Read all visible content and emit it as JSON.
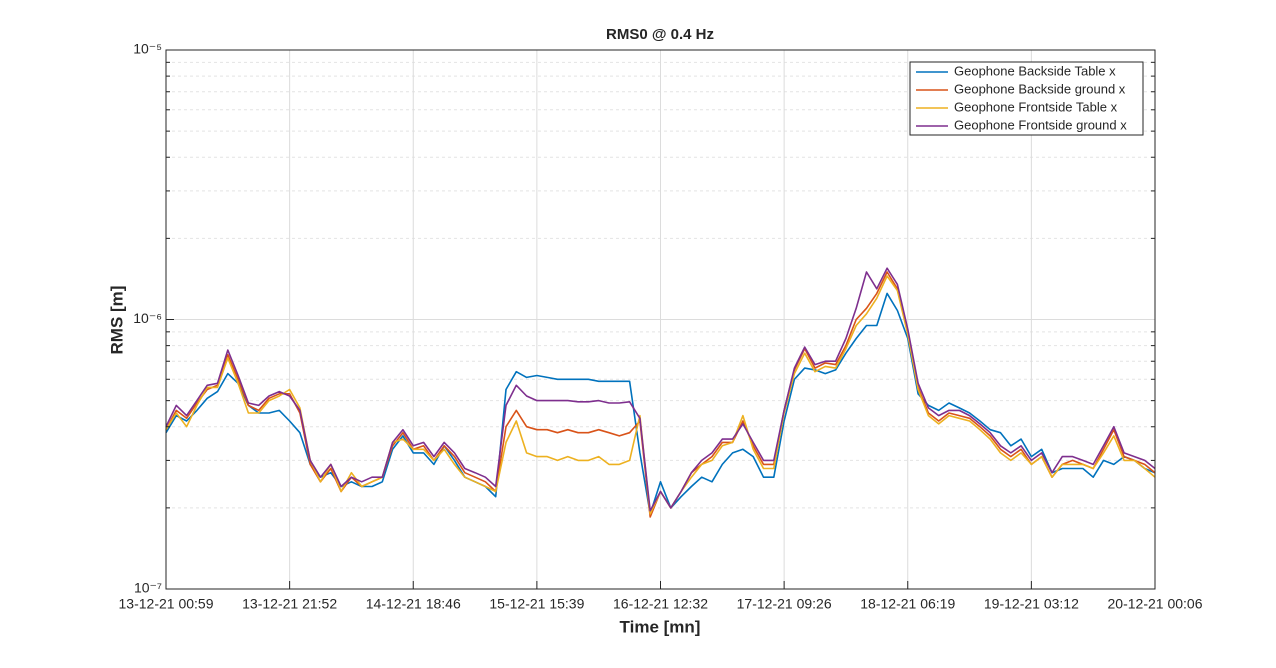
{
  "chart_data": {
    "type": "line",
    "title": "RMS0 @ 0.4 Hz",
    "x_label": "Time [mn]",
    "y_label": "RMS [m]",
    "y_scale": "log",
    "grid": true,
    "legend_position": "top-right",
    "categories": [
      "13-12-21 00:59",
      null,
      null,
      null,
      null,
      null,
      null,
      null,
      null,
      null,
      null,
      null,
      "13-12-21 21:52",
      null,
      null,
      null,
      null,
      null,
      null,
      null,
      null,
      null,
      null,
      null,
      "14-12-21 18:46",
      null,
      null,
      null,
      null,
      null,
      null,
      null,
      null,
      null,
      null,
      null,
      "15-12-21 15:39",
      null,
      null,
      null,
      null,
      null,
      null,
      null,
      null,
      null,
      null,
      null,
      "16-12-21 12:32",
      null,
      null,
      null,
      null,
      null,
      null,
      null,
      null,
      null,
      null,
      null,
      "17-12-21 09:26",
      null,
      null,
      null,
      null,
      null,
      null,
      null,
      null,
      null,
      null,
      null,
      "18-12-21 06:19",
      null,
      null,
      null,
      null,
      null,
      null,
      null,
      null,
      null,
      null,
      null,
      "19-12-21 03:12",
      null,
      null,
      null,
      null,
      null,
      null,
      null,
      null,
      null,
      null,
      null,
      "20-12-21 00:06"
    ],
    "ylim": [
      1e-07,
      1e-05
    ],
    "yticks": [
      {
        "value": 1e-07,
        "label": "10⁻⁷"
      },
      {
        "value": 1e-06,
        "label": "10⁻⁶"
      },
      {
        "value": 1e-05,
        "label": "10⁻⁵"
      }
    ],
    "series": [
      {
        "name": "Geophone Backside Table x",
        "color": "#0072BD",
        "values": [
          3.8e-07,
          4.4e-07,
          4.2e-07,
          4.6e-07,
          5.1e-07,
          5.4e-07,
          6.3e-07,
          5.8e-07,
          4.8e-07,
          4.5e-07,
          4.5e-07,
          4.6e-07,
          4.2e-07,
          3.8e-07,
          2.9e-07,
          2.6e-07,
          2.7e-07,
          2.4e-07,
          2.5e-07,
          2.4e-07,
          2.4e-07,
          2.5e-07,
          3.3e-07,
          3.7e-07,
          3.2e-07,
          3.2e-07,
          2.9e-07,
          3.4e-07,
          3e-07,
          2.6e-07,
          2.5e-07,
          2.4e-07,
          2.2e-07,
          5.5e-07,
          6.4e-07,
          6.1e-07,
          6.2e-07,
          6.1e-07,
          6e-07,
          6e-07,
          6e-07,
          6e-07,
          5.9e-07,
          5.9e-07,
          5.9e-07,
          5.9e-07,
          3.2e-07,
          1.9e-07,
          2.5e-07,
          2e-07,
          2.2e-07,
          2.4e-07,
          2.6e-07,
          2.5e-07,
          2.9e-07,
          3.2e-07,
          3.3e-07,
          3.1e-07,
          2.6e-07,
          2.6e-07,
          4.2e-07,
          6e-07,
          6.6e-07,
          6.5e-07,
          6.3e-07,
          6.5e-07,
          7.5e-07,
          8.5e-07,
          9.5e-07,
          9.5e-07,
          1.25e-06,
          1.08e-06,
          8.5e-07,
          5.3e-07,
          4.8e-07,
          4.6e-07,
          4.9e-07,
          4.7e-07,
          4.5e-07,
          4.2e-07,
          3.9e-07,
          3.8e-07,
          3.4e-07,
          3.6e-07,
          3.1e-07,
          3.3e-07,
          2.7e-07,
          2.8e-07,
          2.8e-07,
          2.8e-07,
          2.6e-07,
          3e-07,
          2.9e-07,
          3.1e-07,
          3e-07,
          2.8e-07,
          2.7e-07
        ]
      },
      {
        "name": "Geophone Backside ground x",
        "color": "#D95319",
        "values": [
          3.9e-07,
          4.6e-07,
          4.3e-07,
          4.9e-07,
          5.5e-07,
          5.7e-07,
          7.4e-07,
          6e-07,
          4.8e-07,
          4.6e-07,
          5.1e-07,
          5.3e-07,
          5.3e-07,
          4.5e-07,
          2.9e-07,
          2.5e-07,
          2.8e-07,
          2.3e-07,
          2.6e-07,
          2.4e-07,
          2.5e-07,
          2.6e-07,
          3.4e-07,
          3.8e-07,
          3.3e-07,
          3.4e-07,
          3e-07,
          3.4e-07,
          3.1e-07,
          2.7e-07,
          2.6e-07,
          2.5e-07,
          2.3e-07,
          4e-07,
          4.6e-07,
          4e-07,
          3.9e-07,
          3.9e-07,
          3.8e-07,
          3.9e-07,
          3.8e-07,
          3.8e-07,
          3.9e-07,
          3.8e-07,
          3.7e-07,
          3.8e-07,
          4.2e-07,
          1.85e-07,
          2.3e-07,
          2e-07,
          2.3e-07,
          2.7e-07,
          2.9e-07,
          3.1e-07,
          3.5e-07,
          3.5e-07,
          4.2e-07,
          3.4e-07,
          2.9e-07,
          2.9e-07,
          4.6e-07,
          6.5e-07,
          7.8e-07,
          6.6e-07,
          6.9e-07,
          6.8e-07,
          8e-07,
          1e-06,
          1.1e-06,
          1.25e-06,
          1.5e-06,
          1.3e-06,
          9e-07,
          5.6e-07,
          4.5e-07,
          4.2e-07,
          4.5e-07,
          4.4e-07,
          4.3e-07,
          4e-07,
          3.7e-07,
          3.3e-07,
          3.1e-07,
          3.3e-07,
          2.9e-07,
          3.1e-07,
          2.6e-07,
          2.9e-07,
          3e-07,
          2.9e-07,
          2.8e-07,
          3.3e-07,
          3.9e-07,
          3.1e-07,
          3e-07,
          2.9e-07,
          2.7e-07
        ]
      },
      {
        "name": "Geophone Frontside Table x",
        "color": "#EDB120",
        "values": [
          3.9e-07,
          4.5e-07,
          4e-07,
          4.8e-07,
          5.6e-07,
          5.6e-07,
          7.2e-07,
          5.8e-07,
          4.5e-07,
          4.5e-07,
          5e-07,
          5.2e-07,
          5.5e-07,
          4.7e-07,
          3e-07,
          2.5e-07,
          2.9e-07,
          2.3e-07,
          2.7e-07,
          2.4e-07,
          2.5e-07,
          2.6e-07,
          3.5e-07,
          3.6e-07,
          3.3e-07,
          3.3e-07,
          3e-07,
          3.3e-07,
          2.9e-07,
          2.6e-07,
          2.5e-07,
          2.4e-07,
          2.3e-07,
          3.5e-07,
          4.2e-07,
          3.2e-07,
          3.1e-07,
          3.1e-07,
          3e-07,
          3.1e-07,
          3e-07,
          3e-07,
          3.1e-07,
          2.9e-07,
          2.9e-07,
          3e-07,
          4.4e-07,
          1.9e-07,
          2.3e-07,
          2e-07,
          2.3e-07,
          2.6e-07,
          2.9e-07,
          3e-07,
          3.4e-07,
          3.5e-07,
          4.4e-07,
          3.3e-07,
          2.8e-07,
          2.8e-07,
          4.5e-07,
          6.3e-07,
          7.5e-07,
          6.4e-07,
          6.7e-07,
          6.6e-07,
          7.8e-07,
          9.5e-07,
          1.05e-06,
          1.2e-06,
          1.45e-06,
          1.28e-06,
          8.8e-07,
          5.5e-07,
          4.4e-07,
          4.1e-07,
          4.4e-07,
          4.3e-07,
          4.2e-07,
          3.9e-07,
          3.6e-07,
          3.2e-07,
          3e-07,
          3.2e-07,
          2.9e-07,
          3.1e-07,
          2.6e-07,
          2.9e-07,
          2.9e-07,
          2.9e-07,
          2.8e-07,
          3.2e-07,
          3.7e-07,
          3e-07,
          3e-07,
          2.8e-07,
          2.6e-07
        ]
      },
      {
        "name": "Geophone Frontside ground x",
        "color": "#7E2F8E",
        "values": [
          4e-07,
          4.8e-07,
          4.4e-07,
          5e-07,
          5.7e-07,
          5.8e-07,
          7.7e-07,
          6.2e-07,
          4.9e-07,
          4.8e-07,
          5.2e-07,
          5.4e-07,
          5.2e-07,
          4.6e-07,
          3e-07,
          2.6e-07,
          2.9e-07,
          2.4e-07,
          2.6e-07,
          2.5e-07,
          2.6e-07,
          2.6e-07,
          3.5e-07,
          3.9e-07,
          3.4e-07,
          3.5e-07,
          3.1e-07,
          3.5e-07,
          3.2e-07,
          2.8e-07,
          2.7e-07,
          2.6e-07,
          2.4e-07,
          4.8e-07,
          5.7e-07,
          5.2e-07,
          5e-07,
          5e-07,
          5e-07,
          5e-07,
          4.95e-07,
          4.95e-07,
          5e-07,
          4.9e-07,
          4.9e-07,
          4.95e-07,
          4.3e-07,
          1.95e-07,
          2.3e-07,
          2e-07,
          2.3e-07,
          2.7e-07,
          3e-07,
          3.2e-07,
          3.6e-07,
          3.6e-07,
          4.1e-07,
          3.5e-07,
          3e-07,
          3e-07,
          4.6e-07,
          6.6e-07,
          7.9e-07,
          6.8e-07,
          7e-07,
          7e-07,
          8.5e-07,
          1.1e-06,
          1.5e-06,
          1.3e-06,
          1.55e-06,
          1.35e-06,
          9.2e-07,
          5.8e-07,
          4.7e-07,
          4.4e-07,
          4.6e-07,
          4.6e-07,
          4.4e-07,
          4.1e-07,
          3.8e-07,
          3.4e-07,
          3.2e-07,
          3.4e-07,
          3e-07,
          3.2e-07,
          2.7e-07,
          3.1e-07,
          3.1e-07,
          3e-07,
          2.9e-07,
          3.4e-07,
          4e-07,
          3.2e-07,
          3.1e-07,
          3e-07,
          2.8e-07
        ]
      }
    ]
  }
}
